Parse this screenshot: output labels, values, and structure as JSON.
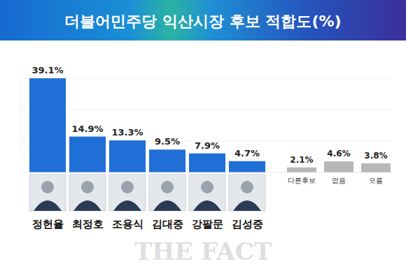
{
  "chart_data": {
    "type": "bar",
    "title": "더불어민주당 익산시장 후보 적합도(%)",
    "categories": [
      "정헌율",
      "최정호",
      "조용식",
      "김대중",
      "강팔문",
      "김성중",
      "다른후보",
      "없음",
      "모름"
    ],
    "values": [
      39.1,
      14.9,
      13.3,
      9.5,
      7.9,
      4.7,
      2.1,
      4.6,
      3.8
    ],
    "value_labels": [
      "39.1%",
      "14.9%",
      "13.3%",
      "9.5%",
      "7.9%",
      "4.7%",
      "2.1%",
      "4.6%",
      "3.8%"
    ],
    "colors": [
      "#1f6fd6",
      "#1f6fd6",
      "#1f6fd6",
      "#1f6fd6",
      "#1f6fd6",
      "#1f6fd6",
      "#b7b7b7",
      "#b7b7b7",
      "#b7b7b7"
    ],
    "ylim": [
      0,
      40
    ],
    "tick_labels": false,
    "grid": false,
    "data_labels": true,
    "annotations": [
      "THE FACT"
    ]
  }
}
